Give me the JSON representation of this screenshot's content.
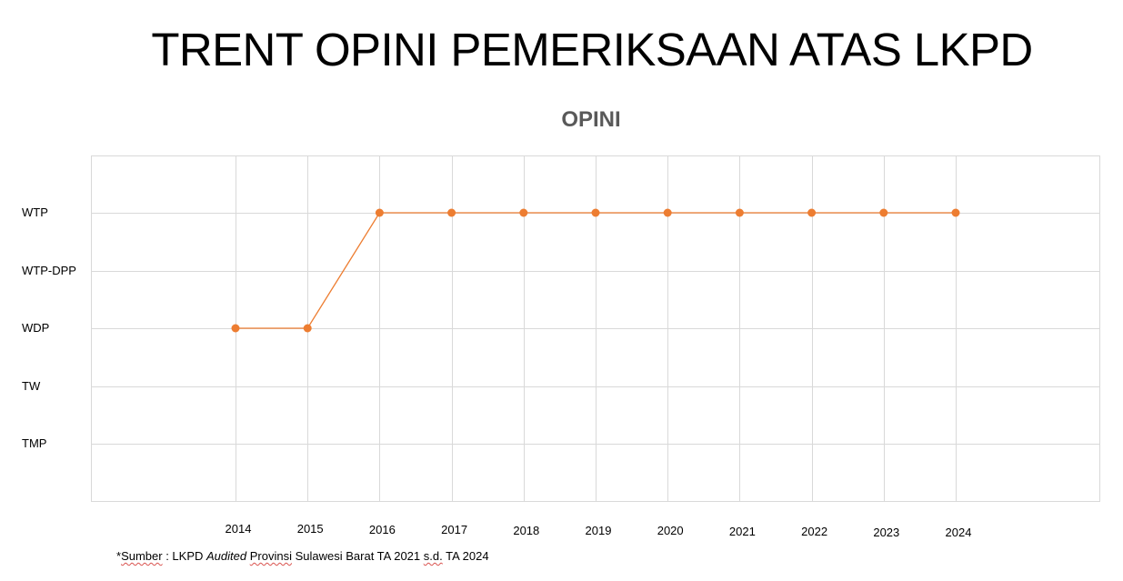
{
  "page": {
    "title": "TRENT OPINI PEMERIKSAAN ATAS LKPD"
  },
  "chart_data": {
    "type": "line",
    "title": "OPINI",
    "xlabel": "",
    "ylabel": "",
    "categories": [
      "2014",
      "2015",
      "2016",
      "2017",
      "2018",
      "2019",
      "2020",
      "2021",
      "2022",
      "2023",
      "2024"
    ],
    "y_levels": [
      "WTP",
      "WTP-DPP",
      "WDP",
      "TW",
      "TMP"
    ],
    "series": [
      {
        "values": [
          "WDP",
          "WDP",
          "WTP",
          "WTP",
          "WTP",
          "WTP",
          "WTP",
          "WTP",
          "WTP",
          "WTP",
          "WTP"
        ],
        "color": "#ed7d31"
      }
    ],
    "grid": true,
    "legend": "none"
  },
  "footnote": {
    "prefix": "*",
    "source_label": "Sumber",
    "separator": " : LKPD ",
    "audited": "Audited",
    "provinsi": "Provinsi",
    "mid": " Sulawesi Barat TA 2021 ",
    "sd": "s.d.",
    "suffix": " TA 2024"
  }
}
